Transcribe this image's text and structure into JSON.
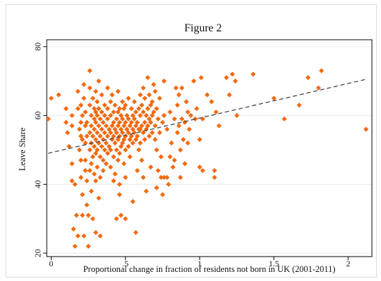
{
  "chart_data": {
    "type": "scatter",
    "title": "Figure 2",
    "xlabel": "Proportional change in fraction of residents not born in UK (2001-2011)",
    "ylabel": "Leave Share",
    "xlim": [
      -0.03,
      2.16
    ],
    "ylim": [
      19,
      82
    ],
    "x_ticks": [
      0,
      0.5,
      1,
      1.5,
      2
    ],
    "x_tick_labels": [
      "0",
      ".5",
      "1",
      "1.5",
      "2"
    ],
    "y_ticks": [
      20,
      40,
      60,
      80
    ],
    "y_tick_labels": [
      "20",
      "40",
      "60",
      "80"
    ],
    "grid": "horizontal",
    "marker": "diamond",
    "marker_color": "#f26a10",
    "fit_line": {
      "style": "dashed",
      "color": "#444444",
      "x": [
        -0.02,
        2.12
      ],
      "y": [
        49,
        70.5
      ]
    },
    "points": [
      [
        -0.02,
        59
      ],
      [
        0.0,
        65
      ],
      [
        0.05,
        66
      ],
      [
        0.1,
        62
      ],
      [
        0.1,
        58
      ],
      [
        0.11,
        55
      ],
      [
        0.12,
        51
      ],
      [
        0.14,
        60
      ],
      [
        0.14,
        57
      ],
      [
        0.14,
        46
      ],
      [
        0.14,
        41
      ],
      [
        0.15,
        27
      ],
      [
        0.16,
        40
      ],
      [
        0.16,
        22
      ],
      [
        0.17,
        31
      ],
      [
        0.18,
        25
      ],
      [
        0.18,
        67
      ],
      [
        0.18,
        62
      ],
      [
        0.19,
        56
      ],
      [
        0.19,
        50
      ],
      [
        0.2,
        63
      ],
      [
        0.2,
        58
      ],
      [
        0.2,
        54
      ],
      [
        0.2,
        47
      ],
      [
        0.2,
        42
      ],
      [
        0.21,
        60
      ],
      [
        0.21,
        53
      ],
      [
        0.21,
        37
      ],
      [
        0.21,
        31
      ],
      [
        0.22,
        25
      ],
      [
        0.22,
        69
      ],
      [
        0.22,
        65
      ],
      [
        0.23,
        61
      ],
      [
        0.23,
        57
      ],
      [
        0.23,
        52
      ],
      [
        0.23,
        47
      ],
      [
        0.23,
        44
      ],
      [
        0.24,
        58
      ],
      [
        0.24,
        54
      ],
      [
        0.24,
        41
      ],
      [
        0.24,
        34
      ],
      [
        0.25,
        31
      ],
      [
        0.25,
        22
      ],
      [
        0.26,
        73
      ],
      [
        0.26,
        68
      ],
      [
        0.26,
        63
      ],
      [
        0.26,
        55
      ],
      [
        0.26,
        50
      ],
      [
        0.26,
        44
      ],
      [
        0.27,
        60
      ],
      [
        0.27,
        57
      ],
      [
        0.27,
        52
      ],
      [
        0.27,
        46
      ],
      [
        0.27,
        38
      ],
      [
        0.28,
        65
      ],
      [
        0.28,
        54
      ],
      [
        0.28,
        48
      ],
      [
        0.28,
        30
      ],
      [
        0.29,
        62
      ],
      [
        0.29,
        59
      ],
      [
        0.29,
        56
      ],
      [
        0.29,
        51
      ],
      [
        0.29,
        43
      ],
      [
        0.3,
        67
      ],
      [
        0.3,
        61
      ],
      [
        0.3,
        58
      ],
      [
        0.3,
        53
      ],
      [
        0.3,
        49
      ],
      [
        0.3,
        41
      ],
      [
        0.3,
        26
      ],
      [
        0.31,
        64
      ],
      [
        0.31,
        60
      ],
      [
        0.31,
        55
      ],
      [
        0.31,
        50
      ],
      [
        0.31,
        45
      ],
      [
        0.32,
        70
      ],
      [
        0.32,
        62
      ],
      [
        0.32,
        57
      ],
      [
        0.32,
        52
      ],
      [
        0.32,
        36
      ],
      [
        0.33,
        59
      ],
      [
        0.33,
        54
      ],
      [
        0.33,
        48
      ],
      [
        0.33,
        42
      ],
      [
        0.33,
        25
      ],
      [
        0.34,
        66
      ],
      [
        0.34,
        61
      ],
      [
        0.34,
        56
      ],
      [
        0.34,
        51
      ],
      [
        0.35,
        58
      ],
      [
        0.35,
        53
      ],
      [
        0.35,
        47
      ],
      [
        0.35,
        44
      ],
      [
        0.36,
        63
      ],
      [
        0.36,
        60
      ],
      [
        0.36,
        55
      ],
      [
        0.36,
        50
      ],
      [
        0.37,
        57
      ],
      [
        0.37,
        52
      ],
      [
        0.37,
        46
      ],
      [
        0.38,
        68
      ],
      [
        0.38,
        62
      ],
      [
        0.38,
        59
      ],
      [
        0.38,
        54
      ],
      [
        0.38,
        49
      ],
      [
        0.39,
        56
      ],
      [
        0.39,
        51
      ],
      [
        0.4,
        64
      ],
      [
        0.4,
        60
      ],
      [
        0.4,
        55
      ],
      [
        0.4,
        50
      ],
      [
        0.4,
        45
      ],
      [
        0.41,
        66
      ],
      [
        0.41,
        57
      ],
      [
        0.41,
        53
      ],
      [
        0.42,
        61
      ],
      [
        0.42,
        58
      ],
      [
        0.42,
        54
      ],
      [
        0.42,
        48
      ],
      [
        0.42,
        41
      ],
      [
        0.43,
        63
      ],
      [
        0.43,
        56
      ],
      [
        0.43,
        52
      ],
      [
        0.43,
        43
      ],
      [
        0.44,
        59
      ],
      [
        0.44,
        55
      ],
      [
        0.44,
        50
      ],
      [
        0.44,
        30
      ],
      [
        0.45,
        67
      ],
      [
        0.45,
        61
      ],
      [
        0.45,
        57
      ],
      [
        0.45,
        53
      ],
      [
        0.45,
        47
      ],
      [
        0.46,
        62
      ],
      [
        0.46,
        58
      ],
      [
        0.46,
        54
      ],
      [
        0.46,
        49
      ],
      [
        0.46,
        40
      ],
      [
        0.46,
        37
      ],
      [
        0.47,
        60
      ],
      [
        0.47,
        56
      ],
      [
        0.47,
        51
      ],
      [
        0.47,
        31
      ],
      [
        0.48,
        64
      ],
      [
        0.48,
        59
      ],
      [
        0.48,
        55
      ],
      [
        0.48,
        52
      ],
      [
        0.49,
        62
      ],
      [
        0.49,
        57
      ],
      [
        0.49,
        53
      ],
      [
        0.49,
        46
      ],
      [
        0.5,
        63
      ],
      [
        0.5,
        58
      ],
      [
        0.5,
        54
      ],
      [
        0.5,
        50
      ],
      [
        0.5,
        42
      ],
      [
        0.5,
        30
      ],
      [
        0.51,
        60
      ],
      [
        0.51,
        56
      ],
      [
        0.52,
        65
      ],
      [
        0.52,
        59
      ],
      [
        0.52,
        55
      ],
      [
        0.52,
        51
      ],
      [
        0.53,
        57
      ],
      [
        0.53,
        53
      ],
      [
        0.53,
        48
      ],
      [
        0.54,
        62
      ],
      [
        0.54,
        58
      ],
      [
        0.54,
        54
      ],
      [
        0.55,
        60
      ],
      [
        0.55,
        56
      ],
      [
        0.55,
        52
      ],
      [
        0.55,
        35
      ],
      [
        0.56,
        64
      ],
      [
        0.56,
        59
      ],
      [
        0.56,
        55
      ],
      [
        0.57,
        61
      ],
      [
        0.57,
        57
      ],
      [
        0.57,
        53
      ],
      [
        0.57,
        26
      ],
      [
        0.58,
        58
      ],
      [
        0.58,
        54
      ],
      [
        0.58,
        44
      ],
      [
        0.59,
        62
      ],
      [
        0.59,
        56
      ],
      [
        0.59,
        50
      ],
      [
        0.6,
        66
      ],
      [
        0.6,
        60
      ],
      [
        0.6,
        56
      ],
      [
        0.6,
        52
      ],
      [
        0.61,
        63
      ],
      [
        0.61,
        57
      ],
      [
        0.61,
        47
      ],
      [
        0.62,
        68
      ],
      [
        0.62,
        61
      ],
      [
        0.62,
        55
      ],
      [
        0.62,
        42
      ],
      [
        0.63,
        65
      ],
      [
        0.63,
        58
      ],
      [
        0.63,
        53
      ],
      [
        0.64,
        60
      ],
      [
        0.64,
        56
      ],
      [
        0.64,
        38
      ],
      [
        0.65,
        71
      ],
      [
        0.65,
        62
      ],
      [
        0.65,
        57
      ],
      [
        0.66,
        66
      ],
      [
        0.66,
        59
      ],
      [
        0.66,
        54
      ],
      [
        0.67,
        63
      ],
      [
        0.67,
        58
      ],
      [
        0.67,
        45
      ],
      [
        0.68,
        64
      ],
      [
        0.68,
        60
      ],
      [
        0.68,
        55
      ],
      [
        0.69,
        69
      ],
      [
        0.69,
        61
      ],
      [
        0.7,
        67
      ],
      [
        0.7,
        57
      ],
      [
        0.7,
        53
      ],
      [
        0.71,
        62
      ],
      [
        0.71,
        50
      ],
      [
        0.71,
        39
      ],
      [
        0.72,
        59
      ],
      [
        0.72,
        44
      ],
      [
        0.73,
        65
      ],
      [
        0.73,
        55
      ],
      [
        0.74,
        48
      ],
      [
        0.74,
        42
      ],
      [
        0.75,
        58
      ],
      [
        0.75,
        37
      ],
      [
        0.76,
        70
      ],
      [
        0.76,
        60
      ],
      [
        0.76,
        42
      ],
      [
        0.78,
        56
      ],
      [
        0.78,
        42
      ],
      [
        0.79,
        40
      ],
      [
        0.8,
        61
      ],
      [
        0.8,
        48
      ],
      [
        0.81,
        52
      ],
      [
        0.82,
        45
      ],
      [
        0.83,
        59
      ],
      [
        0.83,
        47
      ],
      [
        0.84,
        68
      ],
      [
        0.85,
        63
      ],
      [
        0.85,
        55
      ],
      [
        0.86,
        66
      ],
      [
        0.86,
        57
      ],
      [
        0.87,
        50
      ],
      [
        0.87,
        42
      ],
      [
        0.88,
        68
      ],
      [
        0.88,
        59
      ],
      [
        0.89,
        53
      ],
      [
        0.9,
        58
      ],
      [
        0.9,
        46
      ],
      [
        0.91,
        64
      ],
      [
        0.92,
        61
      ],
      [
        0.92,
        52
      ],
      [
        0.93,
        56
      ],
      [
        0.94,
        60
      ],
      [
        0.96,
        70
      ],
      [
        0.97,
        59
      ],
      [
        0.98,
        62
      ],
      [
        1.0,
        53
      ],
      [
        1.0,
        45
      ],
      [
        1.01,
        71
      ],
      [
        1.02,
        59
      ],
      [
        1.02,
        44
      ],
      [
        1.05,
        66
      ],
      [
        1.08,
        64
      ],
      [
        1.1,
        44
      ],
      [
        1.1,
        42
      ],
      [
        1.11,
        61
      ],
      [
        1.13,
        57
      ],
      [
        1.18,
        71
      ],
      [
        1.2,
        66
      ],
      [
        1.22,
        72
      ],
      [
        1.24,
        70
      ],
      [
        1.25,
        60
      ],
      [
        1.36,
        72
      ],
      [
        1.5,
        65
      ],
      [
        1.57,
        59
      ],
      [
        1.67,
        63
      ],
      [
        1.73,
        71
      ],
      [
        1.8,
        68
      ],
      [
        1.82,
        73
      ],
      [
        2.12,
        56
      ]
    ]
  }
}
